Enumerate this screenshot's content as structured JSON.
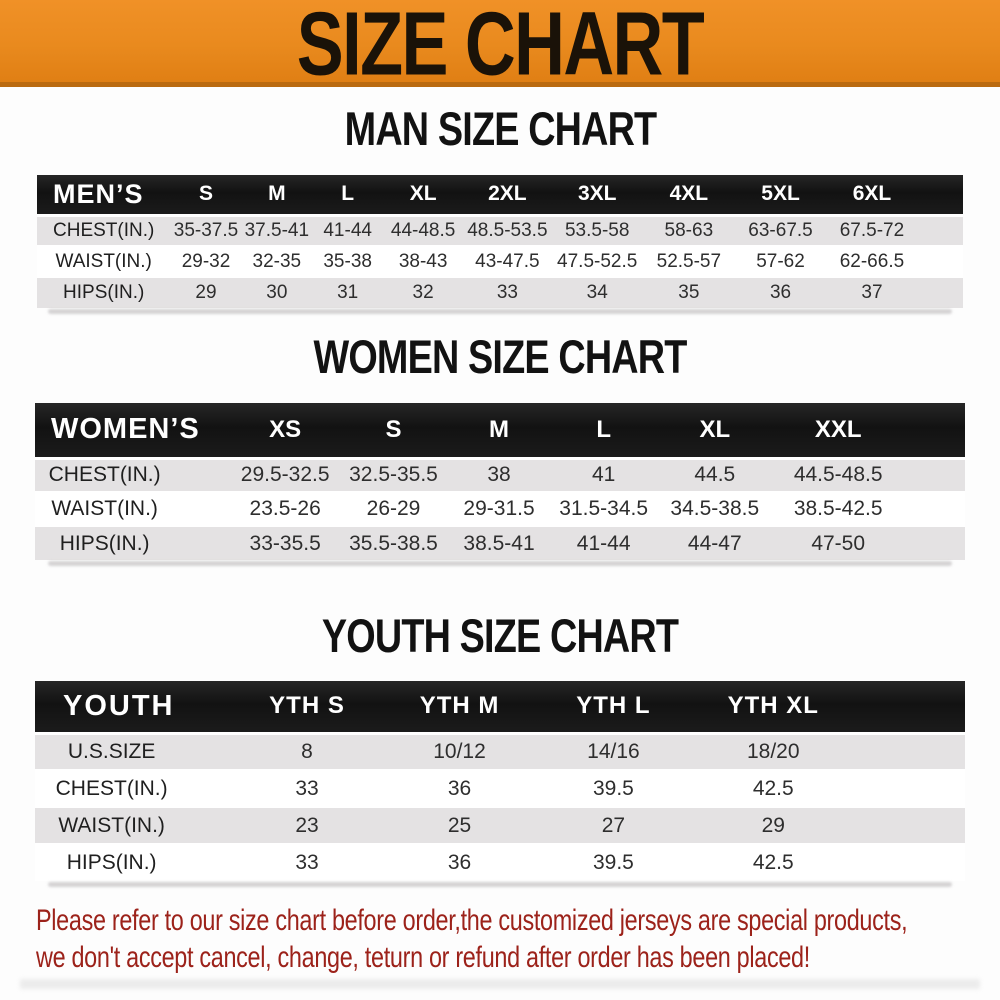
{
  "banner": {
    "title": "SIZE CHART"
  },
  "colors": {
    "banner_bg": "#E98A1E",
    "banner_edge": "#BA6A10",
    "header_bar": "#161616",
    "header_text": "#FFFFFF",
    "row_alt": "#E4E2E3",
    "cell_text": "#2E2E2E",
    "disclaimer_red": "#9C221A"
  },
  "chart_data": [
    {
      "type": "table",
      "title": "MAN SIZE CHART",
      "header": "MEN’S",
      "columns": [
        "S",
        "M",
        "L",
        "XL",
        "2XL",
        "3XL",
        "4XL",
        "5XL",
        "6XL"
      ],
      "rows": [
        {
          "label": "CHEST(IN.)",
          "values": [
            "35-37.5",
            "37.5-41",
            "41-44",
            "44-48.5",
            "48.5-53.5",
            "53.5-58",
            "58-63",
            "63-67.5",
            "67.5-72"
          ]
        },
        {
          "label": "WAIST(IN.)",
          "values": [
            "29-32",
            "32-35",
            "35-38",
            "38-43",
            "43-47.5",
            "47.5-52.5",
            "52.5-57",
            "57-62",
            "62-66.5"
          ]
        },
        {
          "label": "HIPS(IN.)",
          "values": [
            "29",
            "30",
            "31",
            "32",
            "33",
            "34",
            "35",
            "36",
            "37"
          ]
        }
      ]
    },
    {
      "type": "table",
      "title": "WOMEN SIZE CHART",
      "header": "WOMEN’S",
      "columns": [
        "XS",
        "S",
        "M",
        "L",
        "XL",
        "XXL"
      ],
      "rows": [
        {
          "label": "CHEST(IN.)",
          "values": [
            "29.5-32.5",
            "32.5-35.5",
            "38",
            "41",
            "44.5",
            "44.5-48.5"
          ]
        },
        {
          "label": "WAIST(IN.)",
          "values": [
            "23.5-26",
            "26-29",
            "29-31.5",
            "31.5-34.5",
            "34.5-38.5",
            "38.5-42.5"
          ]
        },
        {
          "label": "HIPS(IN.)",
          "values": [
            "33-35.5",
            "35.5-38.5",
            "38.5-41",
            "41-44",
            "44-47",
            "47-50"
          ]
        }
      ]
    },
    {
      "type": "table",
      "title": "YOUTH SIZE CHART",
      "header": "YOUTH",
      "columns": [
        "YTH S",
        "YTH M",
        "YTH L",
        "YTH XL"
      ],
      "rows": [
        {
          "label": "U.S.SIZE",
          "values": [
            "8",
            "10/12",
            "14/16",
            "18/20"
          ]
        },
        {
          "label": "CHEST(IN.)",
          "values": [
            "33",
            "36",
            "39.5",
            "42.5"
          ]
        },
        {
          "label": "WAIST(IN.)",
          "values": [
            "23",
            "25",
            "27",
            "29"
          ]
        },
        {
          "label": "HIPS(IN.)",
          "values": [
            "33",
            "36",
            "39.5",
            "42.5"
          ]
        }
      ]
    }
  ],
  "disclaimer": {
    "line1": "Please refer to our size chart before order,the customized jerseys are special products,",
    "line2": "we don't accept cancel, change, teturn or refund after order has been placed!"
  }
}
